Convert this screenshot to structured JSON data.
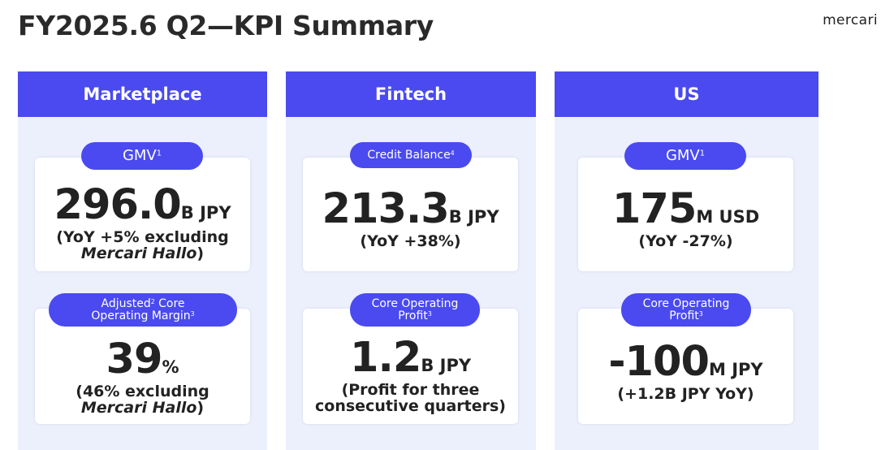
{
  "title": "FY2025.6 Q2—KPI Summary",
  "logo": "mercari",
  "colors": {
    "accent": "#4a4af0",
    "panel": "#eceffc"
  },
  "columns": [
    {
      "header": "Marketplace",
      "top": {
        "label": "GMV",
        "label_sup": "1",
        "value": "296.0",
        "unit": "B JPY",
        "sub1": "(YoY +5% excluding",
        "sub2": "Mercari Hallo",
        "sub2_suffix": ")"
      },
      "bottom": {
        "label1": "Adjusted",
        "label1_sup": "2",
        "label1_rest": " Core",
        "label2": "Operating Margin",
        "label2_sup": "3",
        "value": "39",
        "unit": "%",
        "sub1": "(46% excluding",
        "sub2": "Mercari Hallo",
        "sub2_suffix": ")"
      }
    },
    {
      "header": "Fintech",
      "top": {
        "label": "Credit Balance",
        "label_sup": "4",
        "value": "213.3",
        "unit": "B JPY",
        "sub1": "(YoY +38%)"
      },
      "bottom": {
        "label1": "Core Operating",
        "label2": "Profit",
        "label2_sup": "3",
        "value": "1.2",
        "unit": "B JPY",
        "sub1": "(Profit for three",
        "sub2": "consecutive quarters)"
      }
    },
    {
      "header": "US",
      "top": {
        "label": "GMV",
        "label_sup": "1",
        "value": "175",
        "unit": "M USD",
        "sub1": "(YoY -27%)"
      },
      "bottom": {
        "label1": "Core Operating",
        "label2": "Profit",
        "label2_sup": "3",
        "value": "-100",
        "unit": "M JPY",
        "sub1": "(+1.2B JPY YoY)"
      }
    }
  ]
}
